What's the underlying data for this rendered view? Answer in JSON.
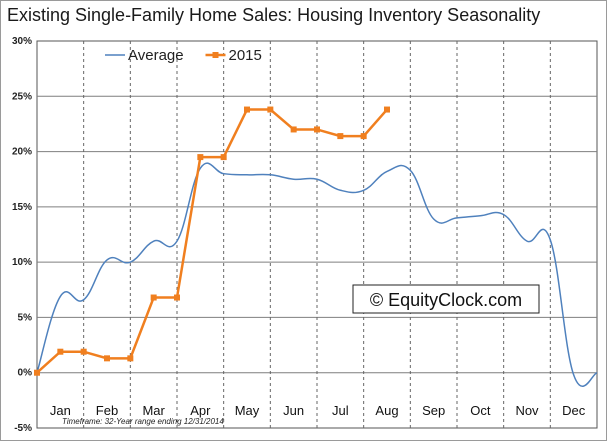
{
  "chart_data": {
    "type": "line",
    "title": "Existing Single-Family Home Sales: Housing Inventory Seasonality",
    "xlabel": "",
    "ylabel": "",
    "xlim": [
      0,
      12
    ],
    "ylim": [
      -5,
      30
    ],
    "y_ticks": [
      30,
      25,
      20,
      15,
      10,
      5,
      0,
      -5
    ],
    "y_tick_labels": [
      "30%",
      "25%",
      "20%",
      "15%",
      "10%",
      "5%",
      "0%",
      "-5%"
    ],
    "categories": [
      "Jan",
      "Feb",
      "Mar",
      "Apr",
      "May",
      "Jun",
      "Jul",
      "Aug",
      "Sep",
      "Oct",
      "Nov",
      "Dec"
    ],
    "grid": true,
    "legend_position": "top-left",
    "series": [
      {
        "name": "Average",
        "color": "#4f81bd",
        "marker": "none",
        "x": [
          0,
          0.5,
          1.0,
          1.5,
          2.0,
          2.5,
          3.0,
          3.5,
          4.0,
          4.5,
          5.0,
          5.5,
          6.0,
          6.5,
          7.0,
          7.5,
          8.0,
          8.5,
          9.0,
          9.5,
          10.0,
          10.5,
          11.0,
          11.5,
          12.0
        ],
        "values": [
          0,
          6.9,
          6.6,
          10.2,
          10.0,
          11.9,
          11.9,
          18.5,
          18.0,
          17.9,
          17.9,
          17.5,
          17.5,
          16.5,
          16.5,
          18.2,
          18.3,
          13.9,
          14.0,
          14.2,
          14.3,
          11.9,
          12.0,
          -0.2,
          0.0
        ]
      },
      {
        "name": "2015",
        "color": "#f07f1f",
        "marker": "square",
        "x": [
          0,
          0.5,
          1.0,
          1.5,
          2.0,
          2.5,
          3.0,
          3.5,
          4.0,
          4.5,
          5.0,
          5.5,
          6.0,
          6.5,
          7.0,
          7.5
        ],
        "values": [
          0,
          1.9,
          1.9,
          1.3,
          1.3,
          6.8,
          6.8,
          19.5,
          19.5,
          23.8,
          23.8,
          22.0,
          22.0,
          21.4,
          21.4,
          23.8
        ]
      }
    ]
  },
  "watermark": "© EquityClock.com",
  "footnote": "Timeframe: 32-Year range ending 12/31/2014"
}
